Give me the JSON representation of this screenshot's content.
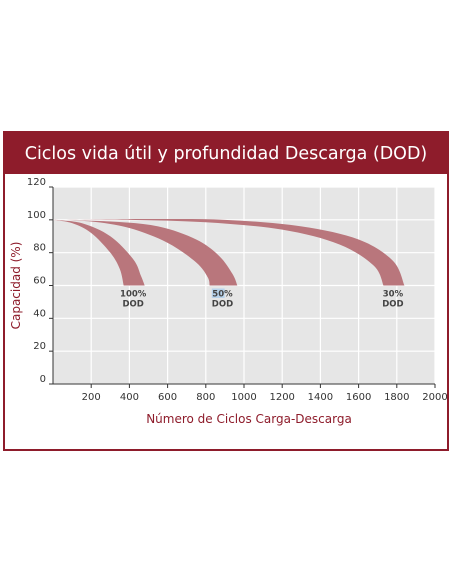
{
  "chart_data": {
    "type": "area",
    "title": "Ciclos vida útil y profundidad Descarga (DOD)",
    "xlabel": "Número de Ciclos Carga-Descarga",
    "ylabel": "Capacidad (%)",
    "xlim": [
      0,
      2000
    ],
    "ylim": [
      0,
      120
    ],
    "xticks": [
      "200",
      "400",
      "600",
      "800",
      "1000",
      "1200",
      "1400",
      "1600",
      "1800",
      "2000"
    ],
    "yticks": [
      "0",
      "20",
      "40",
      "60",
      "80",
      "100",
      "120"
    ],
    "grid": true,
    "series": [
      {
        "name": "100% DOD",
        "upper": [
          [
            0,
            100
          ],
          [
            100,
            98
          ],
          [
            200,
            92
          ],
          [
            300,
            80
          ],
          [
            350,
            70
          ],
          [
            370,
            60
          ]
        ],
        "lower": [
          [
            0,
            100
          ],
          [
            150,
            98
          ],
          [
            300,
            90
          ],
          [
            420,
            76
          ],
          [
            460,
            66
          ],
          [
            480,
            60
          ]
        ],
        "label_lines": [
          "100%",
          "DOD"
        ]
      },
      {
        "name": "50% DOD",
        "upper": [
          [
            0,
            100
          ],
          [
            200,
            99
          ],
          [
            400,
            95
          ],
          [
            600,
            86
          ],
          [
            750,
            74
          ],
          [
            810,
            65
          ],
          [
            820,
            60
          ]
        ],
        "lower": [
          [
            0,
            100
          ],
          [
            300,
            99
          ],
          [
            550,
            96
          ],
          [
            750,
            88
          ],
          [
            870,
            78
          ],
          [
            940,
            67
          ],
          [
            965,
            60
          ]
        ],
        "label_lines": [
          "50%",
          "DOD"
        ]
      },
      {
        "name": "30% DOD",
        "upper": [
          [
            0,
            100
          ],
          [
            400,
            100
          ],
          [
            800,
            98.5
          ],
          [
            1200,
            94
          ],
          [
            1500,
            85
          ],
          [
            1680,
            72
          ],
          [
            1730,
            60
          ]
        ],
        "lower": [
          [
            0,
            100
          ],
          [
            500,
            100.5
          ],
          [
            900,
            100
          ],
          [
            1300,
            96
          ],
          [
            1600,
            88
          ],
          [
            1780,
            75
          ],
          [
            1840,
            60
          ]
        ],
        "label_lines": [
          "30%",
          "DOD"
        ]
      }
    ],
    "colors": {
      "frame": "#8e1c2b",
      "band": "#b9767c",
      "plot_bg": "#e6e6e6",
      "grid": "#ffffff",
      "axis": "#333333",
      "label_highlight": "#b8d3ec"
    }
  }
}
